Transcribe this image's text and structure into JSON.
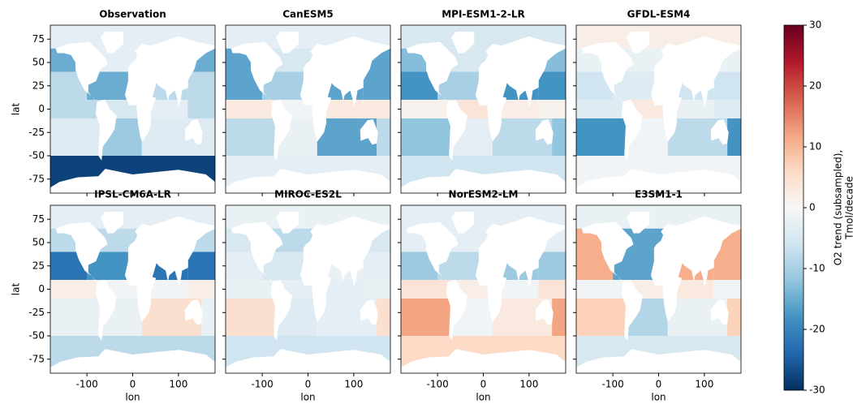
{
  "chart_data": [
    {
      "type": "heatmap",
      "title": "Observation",
      "ylabel": "lat",
      "xlim": [
        -180,
        180
      ],
      "ylim": [
        -90,
        90
      ],
      "xticks": [
        -100,
        0,
        100
      ],
      "yticks": [
        -75,
        -50,
        -25,
        0,
        25,
        50,
        75
      ],
      "values": [
        -3,
        -15,
        -3,
        -8,
        -15,
        -8,
        -8,
        -5,
        -3,
        -4,
        -11,
        -4,
        -28
      ]
    },
    {
      "type": "heatmap",
      "title": "CanESM5",
      "xlim": [
        -180,
        180
      ],
      "ylim": [
        -90,
        90
      ],
      "xticks": [
        -100,
        0,
        100
      ],
      "yticks": [
        -75,
        -50,
        -25,
        0,
        25,
        50,
        75
      ],
      "values": [
        -3,
        -16,
        -5,
        -16,
        -10,
        -16,
        3,
        -1,
        3,
        -8,
        -2,
        -16,
        -3
      ]
    },
    {
      "type": "heatmap",
      "title": "MPI-ESM1-2-LR",
      "xlim": [
        -180,
        180
      ],
      "ylim": [
        -90,
        90
      ],
      "xticks": [
        -100,
        0,
        100
      ],
      "yticks": [
        -75,
        -50,
        -25,
        0,
        25,
        50,
        75
      ],
      "values": [
        -5,
        -13,
        -5,
        -18,
        -10,
        -18,
        1,
        4,
        2,
        -12,
        -3,
        -8,
        -6
      ]
    },
    {
      "type": "heatmap",
      "title": "GFDL-ESM4",
      "xlim": [
        -180,
        180
      ],
      "ylim": [
        -90,
        90
      ],
      "xticks": [
        -100,
        0,
        100
      ],
      "yticks": [
        -75,
        -50,
        -25,
        0,
        25,
        50,
        75
      ],
      "values": [
        2,
        -2,
        -2,
        -6,
        -4,
        -6,
        -4,
        3,
        -2,
        -18,
        -1,
        -8,
        -1
      ]
    },
    {
      "type": "heatmap",
      "title": "IPSL-CM6A-LR",
      "xlabel": "lon",
      "ylabel": "lat",
      "xlim": [
        -180,
        180
      ],
      "ylim": [
        -90,
        90
      ],
      "xticks": [
        -100,
        0,
        100
      ],
      "yticks": [
        -75,
        -50,
        -25,
        0,
        25,
        50,
        75
      ],
      "values": [
        -3,
        -8,
        -8,
        -22,
        -18,
        -22,
        2,
        -1,
        -1,
        -2,
        -2,
        5,
        -8
      ]
    },
    {
      "type": "heatmap",
      "title": "MIROC-ES2L",
      "xlabel": "lon",
      "xlim": [
        -180,
        180
      ],
      "ylim": [
        -90,
        90
      ],
      "xticks": [
        -100,
        0,
        100
      ],
      "yticks": [
        -75,
        -50,
        -25,
        0,
        25,
        50,
        75
      ],
      "values": [
        -2,
        -5,
        -8,
        -3,
        -5,
        -2,
        -2,
        -3,
        -3,
        5,
        -4,
        -3,
        -6
      ]
    },
    {
      "type": "heatmap",
      "title": "NorESM2-LM",
      "xlabel": "lon",
      "xlim": [
        -180,
        180
      ],
      "ylim": [
        -90,
        90
      ],
      "xticks": [
        -100,
        0,
        100
      ],
      "yticks": [
        -75,
        -50,
        -25,
        0,
        25,
        50,
        75
      ],
      "values": [
        -3,
        -3,
        -3,
        -11,
        -8,
        -11,
        4,
        2,
        -1,
        12,
        -1,
        3,
        6
      ]
    },
    {
      "type": "heatmap",
      "title": "E3SM1-1",
      "xlabel": "lon",
      "xlim": [
        -180,
        180
      ],
      "ylim": [
        -90,
        90
      ],
      "xticks": [
        -100,
        0,
        100
      ],
      "yticks": [
        -75,
        -50,
        -25,
        0,
        25,
        50,
        75
      ],
      "values": [
        -2,
        11,
        -16,
        11,
        -16,
        11,
        -1,
        2,
        3,
        7,
        -9,
        -2,
        -5
      ]
    }
  ],
  "colorbar": {
    "label": [
      "O2 trend (subsampled),",
      "Tmol/decade"
    ],
    "lim": [
      -30,
      30
    ],
    "ticks": [
      -30,
      -20,
      -10,
      0,
      10,
      20,
      30
    ],
    "cmap": "RdBu_r"
  }
}
